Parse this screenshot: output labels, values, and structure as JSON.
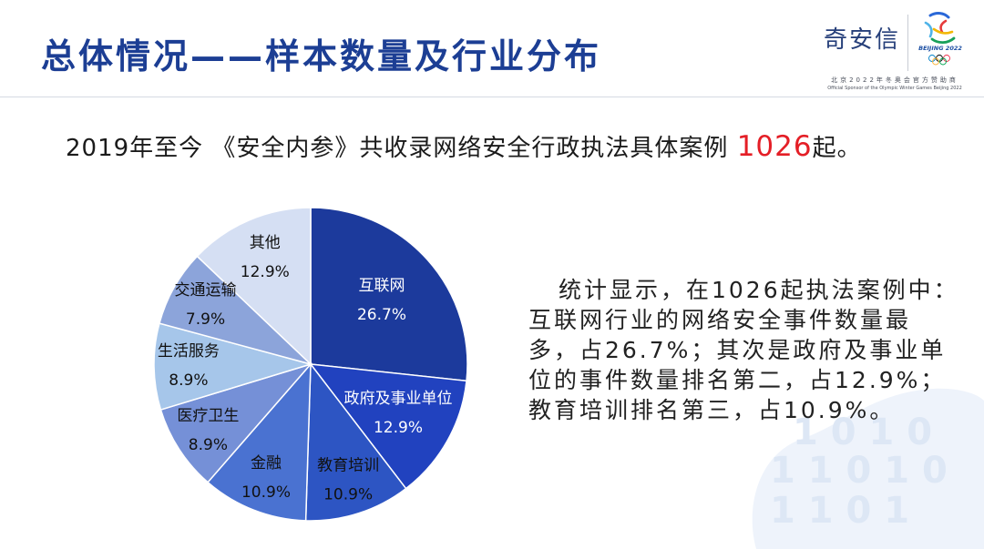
{
  "slide": {
    "title": "总体情况——样本数量及行业分布"
  },
  "logo": {
    "brand": "奇安信",
    "emblem_text": "BEIJING 2022",
    "sponsor_cn": "北京2022年冬奥会官方赞助商",
    "sponsor_en": "Official Sponsor of the Olympic Winter Games Beijing 2022"
  },
  "summary": {
    "prefix": "2019年至今 《安全内参》共收录网络安全行政执法具体案例 ",
    "count": "1026",
    "suffix": "起。"
  },
  "analysis": {
    "lines": [
      "统计显示，在1026起执法案例中：",
      "互联网行业的网络安全事件数量最",
      "多，占26.7%；其次是政府及事业单",
      "位的事件数量排名第二，占12.9%；",
      "教育培训排名第三，占10.9%。"
    ]
  },
  "chart_data": {
    "type": "pie",
    "categories": [
      "互联网",
      "政府及事业单位",
      "教育培训",
      "金融",
      "医疗卫生",
      "生活服务",
      "交通运输",
      "其他"
    ],
    "values": [
      26.7,
      12.9,
      10.9,
      10.9,
      8.9,
      8.9,
      7.9,
      12.9
    ],
    "value_suffix": "%",
    "colors": [
      "#1c3a9c",
      "#2142bf",
      "#2d55c3",
      "#4a72d1",
      "#7590d7",
      "#a6c6ea",
      "#8ca4da",
      "#d5dff3"
    ],
    "label_colors": [
      "#ffffff",
      "#ffffff",
      "#111111",
      "#111111",
      "#111111",
      "#111111",
      "#111111",
      "#111111"
    ]
  },
  "watermark": {
    "rows": [
      "1 0 1 0",
      "1 1 0 1 0",
      "1 1 0 1"
    ]
  },
  "theme": {
    "title_color": "#1c3e94",
    "highlight_color": "#e41e26",
    "watermark_color": "#eef3fb"
  }
}
